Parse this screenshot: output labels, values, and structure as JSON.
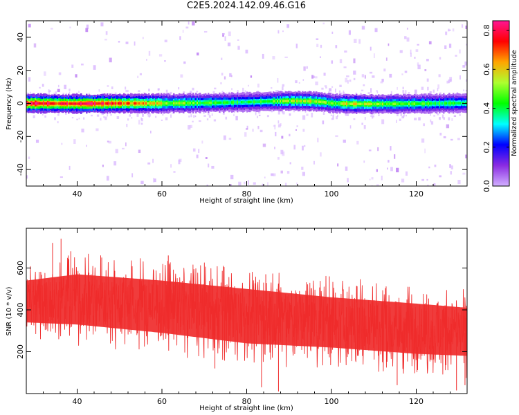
{
  "figure": {
    "title": "C2E5.2024.142.09.46.G16"
  },
  "chart_data": [
    {
      "type": "heatmap",
      "xlabel": "Height of straight line (km)",
      "ylabel": "Frequency (Hz)",
      "xlim": [
        28,
        132
      ],
      "ylim": [
        -50,
        50
      ],
      "xticks": [
        40,
        60,
        80,
        100,
        120
      ],
      "yticks": [
        -40,
        -20,
        0,
        20,
        40
      ],
      "grid": false,
      "colorbar": {
        "label": "Normalized spectral amplitude",
        "range": [
          0.0,
          0.85
        ],
        "ticks": [
          0.0,
          0.2,
          0.4,
          0.6,
          0.8
        ],
        "colormap": [
          "#d2b0ff",
          "#8a2be2",
          "#0000ff",
          "#00ffff",
          "#00ff00",
          "#adff2f",
          "#ffa500",
          "#ff0000",
          "#ff1493"
        ]
      },
      "band": {
        "center_hz": [
          [
            28,
            0.0
          ],
          [
            40,
            -0.2
          ],
          [
            50,
            0.0
          ],
          [
            60,
            0.0
          ],
          [
            70,
            0.3
          ],
          [
            80,
            0.8
          ],
          [
            85,
            1.2
          ],
          [
            90,
            1.5
          ],
          [
            95,
            1.3
          ],
          [
            98,
            0.8
          ],
          [
            100,
            0.0
          ],
          [
            105,
            -0.3
          ],
          [
            110,
            -0.4
          ],
          [
            120,
            -0.2
          ],
          [
            132,
            0.2
          ]
        ],
        "half_width_hz": 3,
        "peak_amplitude": [
          [
            28,
            0.8
          ],
          [
            40,
            0.78
          ],
          [
            50,
            0.7
          ],
          [
            60,
            0.55
          ],
          [
            70,
            0.45
          ],
          [
            80,
            0.4
          ],
          [
            90,
            0.5
          ],
          [
            95,
            0.55
          ],
          [
            100,
            0.45
          ],
          [
            105,
            0.6
          ],
          [
            110,
            0.5
          ],
          [
            120,
            0.45
          ],
          [
            132,
            0.4
          ]
        ]
      }
    },
    {
      "type": "line",
      "xlabel": "Height of straight line (km)",
      "ylabel": "SNR (10 * v/v)",
      "xlim": [
        28,
        132
      ],
      "ylim": [
        0,
        790
      ],
      "xticks": [
        40,
        60,
        80,
        100,
        120
      ],
      "yticks": [
        200,
        400,
        600
      ],
      "grid": false,
      "series": [
        {
          "color": "#ef2b2b",
          "mean_trend": [
            [
              28,
              460
            ],
            [
              40,
              455
            ],
            [
              60,
              430
            ],
            [
              80,
              380
            ],
            [
              100,
              340
            ],
            [
              120,
              300
            ],
            [
              132,
              290
            ]
          ],
          "envelope_low": [
            [
              28,
              270
            ],
            [
              40,
              260
            ],
            [
              60,
              220
            ],
            [
              80,
              170
            ],
            [
              100,
              150
            ],
            [
              120,
              120
            ],
            [
              132,
              110
            ]
          ],
          "envelope_high": [
            [
              28,
              610
            ],
            [
              40,
              640
            ],
            [
              60,
              610
            ],
            [
              80,
              570
            ],
            [
              100,
              530
            ],
            [
              120,
              500
            ],
            [
              132,
              480
            ]
          ],
          "peaks": [
            [
              34.2,
              720
            ],
            [
              36.2,
              740
            ],
            [
              38.5,
              680
            ],
            [
              45.8,
              650
            ],
            [
              61.5,
              660
            ],
            [
              74.5,
              610
            ],
            [
              84.5,
              570
            ],
            [
              99.5,
              560
            ]
          ],
          "dips": [
            [
              72.5,
              120
            ],
            [
              83.5,
              30
            ],
            [
              87.5,
              10
            ],
            [
              115.5,
              40
            ],
            [
              129.5,
              15
            ],
            [
              131.5,
              40
            ]
          ]
        }
      ]
    }
  ]
}
